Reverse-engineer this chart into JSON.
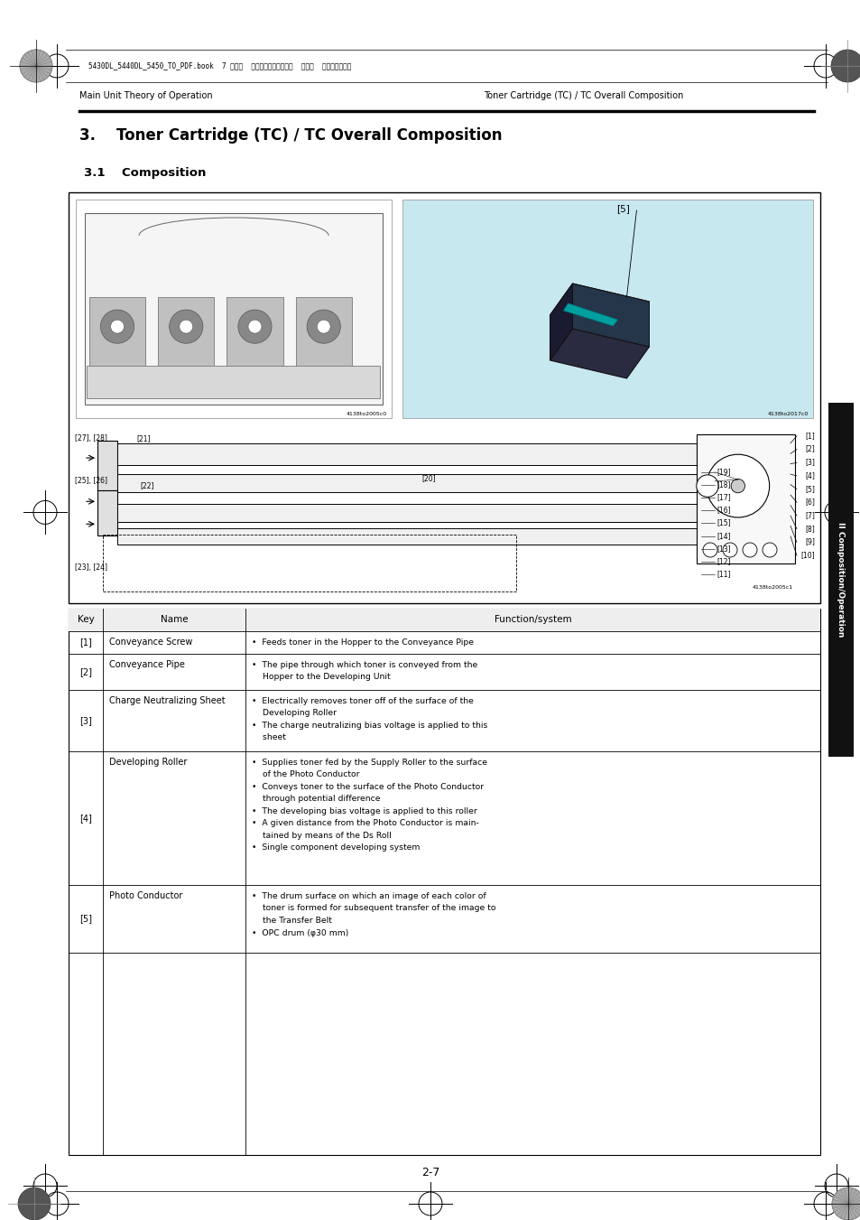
{
  "page_bg": "#ffffff",
  "page_width": 9.54,
  "page_height": 13.51,
  "dpi": 100,
  "header_text_left": "Main Unit Theory of Operation",
  "header_text_right": "Toner Cartridge (TC) / TC Overall Composition",
  "section_title": "3.    Toner Cartridge (TC) / TC Overall Composition",
  "section_subtitle": "3.1    Composition",
  "footer_text": "2-7",
  "stamp_text": "5430DL_5440DL_5450_TO_PDF.book  7 ページ  ２００５年４月１２日  火曜日  午後４時４９分",
  "sidebar_text": "II Composition/Operation",
  "sidebar_color": "#111111",
  "table_headers": [
    "Key",
    "Name",
    "Function/system"
  ],
  "table_rows": [
    {
      "key": "[1]",
      "name": "Conveyance Screw",
      "function": "•  Feeds toner in the Hopper to the Conveyance Pipe"
    },
    {
      "key": "[2]",
      "name": "Conveyance Pipe",
      "function": "•  The pipe through which toner is conveyed from the\n    Hopper to the Developing Unit"
    },
    {
      "key": "[3]",
      "name": "Charge Neutralizing Sheet",
      "function": "•  Electrically removes toner off of the surface of the\n    Developing Roller\n•  The charge neutralizing bias voltage is applied to this\n    sheet"
    },
    {
      "key": "[4]",
      "name": "Developing Roller",
      "function": "•  Supplies toner fed by the Supply Roller to the surface\n    of the Photo Conductor\n•  Conveys toner to the surface of the Photo Conductor\n    through potential difference\n•  The developing bias voltage is applied to this roller\n•  A given distance from the Photo Conductor is main-\n    tained by means of the Ds Roll\n•  Single component developing system"
    },
    {
      "key": "[5]",
      "name": "Photo Conductor",
      "function": "•  The drum surface on which an image of each color of\n    toner is formed for subsequent transfer of the image to\n    the Transfer Belt\n•  OPC drum (φ30 mm)"
    }
  ]
}
